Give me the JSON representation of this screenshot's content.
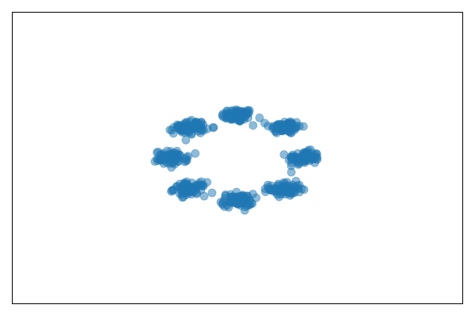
{
  "chart_data": {
    "type": "scatter",
    "title": "",
    "xlabel": "",
    "ylabel": "",
    "xlim": [
      -1.7,
      1.7
    ],
    "ylim": [
      -1.5,
      1.5
    ],
    "axis_visible": false,
    "grid": false,
    "legend": "none",
    "marker": "circle",
    "alpha": 0.5,
    "color": "#1f77b4",
    "clusters": [
      {
        "center": [
          0.0,
          0.44
        ],
        "spread": [
          0.06,
          0.035
        ],
        "count": 80
      },
      {
        "center": [
          0.36,
          0.32
        ],
        "spread": [
          0.06,
          0.035
        ],
        "count": 80
      },
      {
        "center": [
          0.5,
          0.0
        ],
        "spread": [
          0.06,
          0.035
        ],
        "count": 80
      },
      {
        "center": [
          0.36,
          -0.32
        ],
        "spread": [
          0.06,
          0.035
        ],
        "count": 80
      },
      {
        "center": [
          0.0,
          -0.44
        ],
        "spread": [
          0.06,
          0.035
        ],
        "count": 80
      },
      {
        "center": [
          -0.36,
          -0.32
        ],
        "spread": [
          0.06,
          0.035
        ],
        "count": 80
      },
      {
        "center": [
          -0.5,
          0.0
        ],
        "spread": [
          0.06,
          0.035
        ],
        "count": 80
      },
      {
        "center": [
          -0.36,
          0.32
        ],
        "spread": [
          0.06,
          0.035
        ],
        "count": 80
      }
    ]
  }
}
